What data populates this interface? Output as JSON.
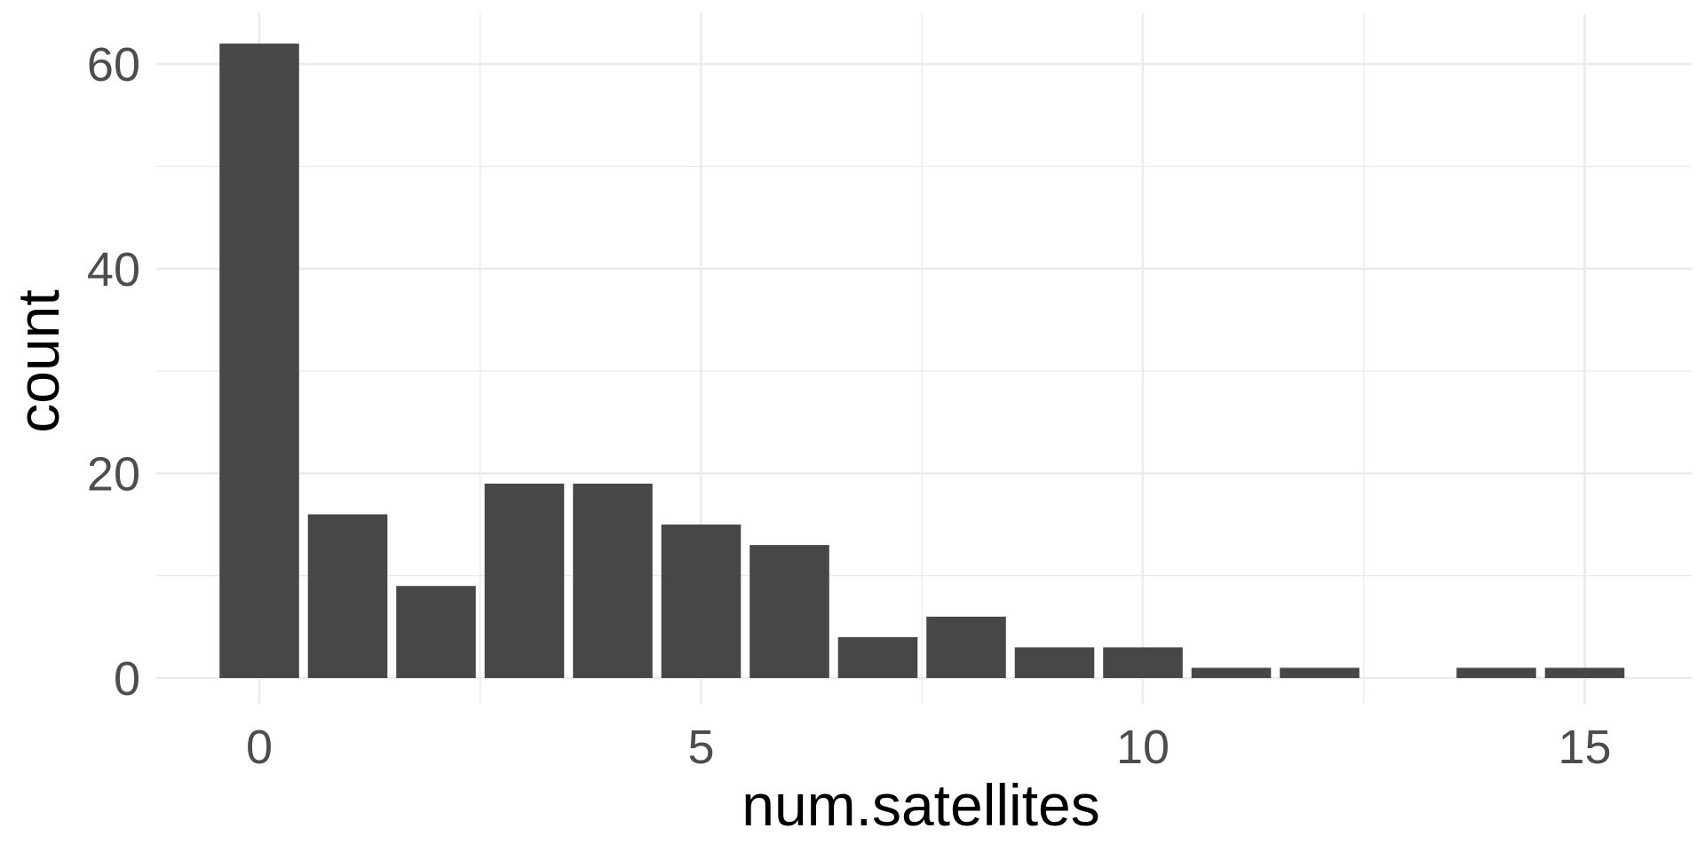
{
  "chart_data": {
    "type": "bar",
    "x": [
      0,
      1,
      2,
      3,
      4,
      5,
      6,
      7,
      8,
      9,
      10,
      11,
      12,
      14,
      15
    ],
    "values": [
      62,
      16,
      9,
      19,
      19,
      15,
      13,
      4,
      6,
      3,
      3,
      1,
      1,
      1,
      1
    ],
    "xlabel": "num.satellites",
    "ylabel": "count",
    "xlim": [
      -0.5,
      15.5
    ],
    "ylim": [
      0,
      62
    ],
    "x_ticks": [
      0,
      5,
      10,
      15
    ],
    "y_ticks": [
      0,
      20,
      40,
      60
    ],
    "grid": true,
    "bar_color": "#474747",
    "grid_color": "#ebebeb"
  }
}
